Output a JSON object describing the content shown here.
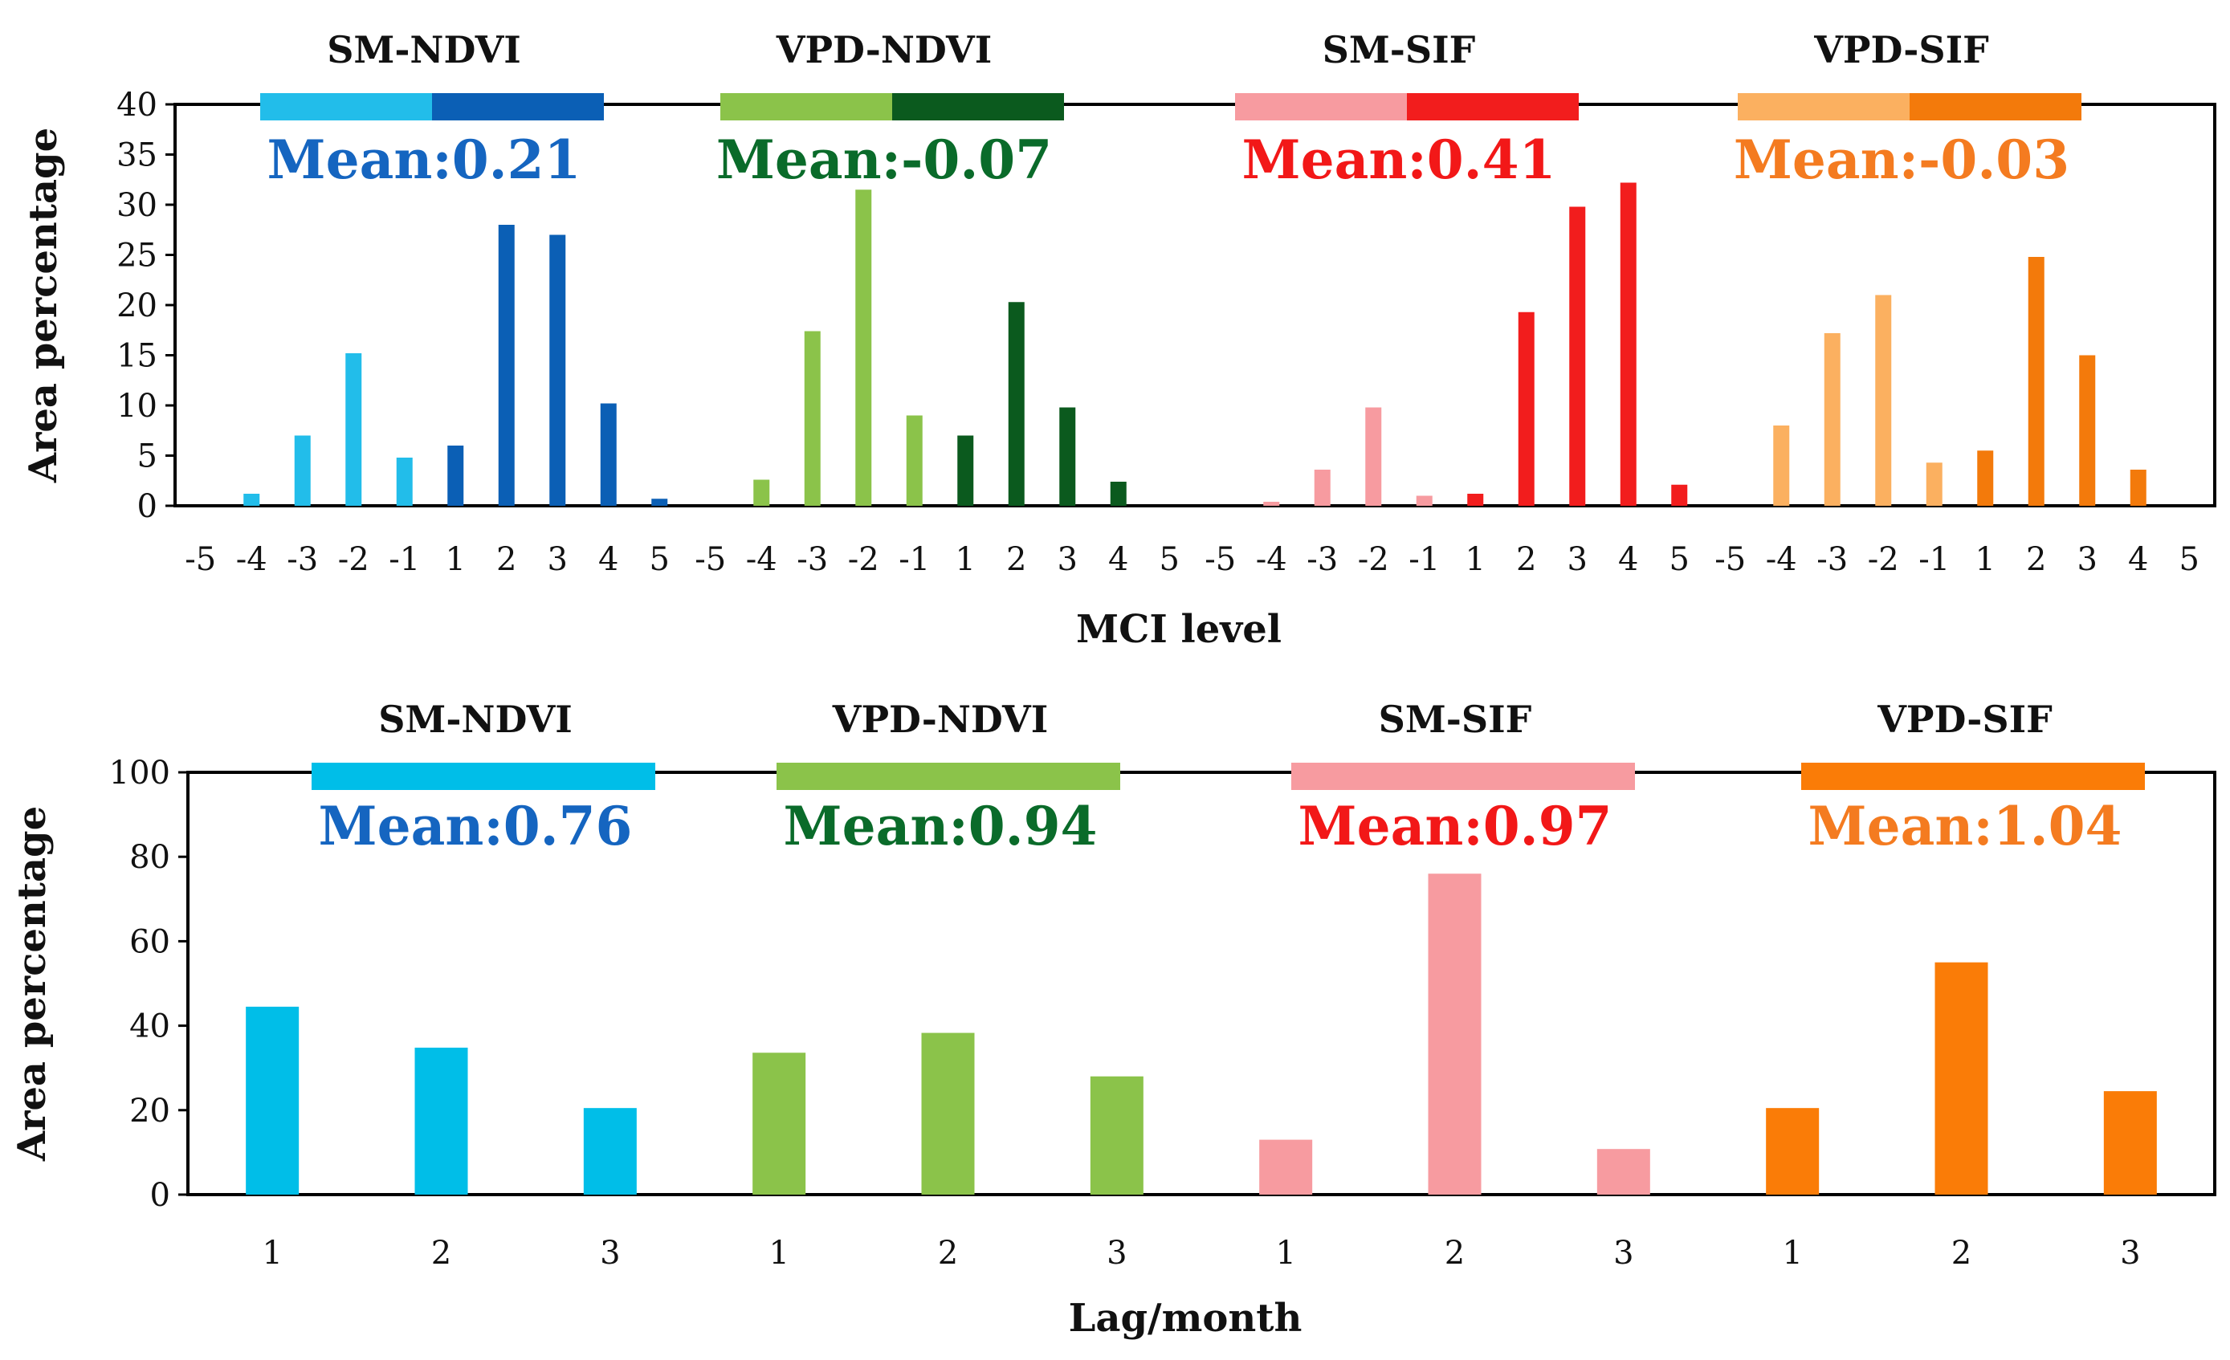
{
  "chart_data": [
    {
      "type": "bar",
      "panel": "top",
      "xlabel": "MCI level",
      "ylabel": "Area percentage",
      "ylim": [
        0,
        40
      ],
      "yticks": [
        "0",
        "5",
        "10",
        "15",
        "20",
        "25",
        "30",
        "35",
        "40"
      ],
      "categories": [
        "-5",
        "-4",
        "-3",
        "-2",
        "-1",
        "1",
        "2",
        "3",
        "4",
        "5"
      ],
      "groups": [
        {
          "name": "SM-NDVI",
          "mean_label": "Mean:0.21",
          "mean_color": "#1565C0",
          "neg_color": "#22BDEA",
          "pos_color": "#0B5FB5",
          "values": [
            0,
            1.2,
            7,
            15.2,
            4.8,
            6,
            28,
            27,
            10.2,
            0.7
          ]
        },
        {
          "name": "VPD-NDVI",
          "mean_label": "Mean:-0.07",
          "mean_color": "#0A6B2A",
          "neg_color": "#8BC34A",
          "pos_color": "#0B5A1E",
          "values": [
            0,
            2.6,
            17.4,
            31.5,
            9,
            7,
            20.3,
            9.8,
            2.4,
            0
          ]
        },
        {
          "name": "SM-SIF",
          "mean_label": "Mean:0.41",
          "mean_color": "#F21818",
          "neg_color": "#F79BA0",
          "pos_color": "#F21D1D",
          "values": [
            0,
            0.4,
            3.6,
            9.8,
            1,
            1.2,
            19.3,
            29.8,
            32.2,
            2.1
          ]
        },
        {
          "name": "VPD-SIF",
          "mean_label": "Mean:-0.03",
          "mean_color": "#F47B20",
          "neg_color": "#FBB060",
          "pos_color": "#F37A0B",
          "values": [
            0,
            8,
            17.2,
            21,
            4.3,
            5.5,
            24.8,
            15,
            3.6,
            0
          ]
        }
      ]
    },
    {
      "type": "bar",
      "panel": "bottom",
      "xlabel": "Lag/month",
      "ylabel": "Area percentage",
      "ylim": [
        0,
        100
      ],
      "yticks": [
        "0",
        "20",
        "40",
        "60",
        "80",
        "100"
      ],
      "categories": [
        "1",
        "2",
        "3"
      ],
      "groups": [
        {
          "name": "SM-NDVI",
          "mean_label": "Mean:0.76",
          "mean_color": "#1565C0",
          "color": "#00BEE8",
          "values": [
            44.5,
            34.8,
            20.5
          ]
        },
        {
          "name": "VPD-NDVI",
          "mean_label": "Mean:0.94",
          "mean_color": "#0A6B2A",
          "color": "#8BC34A",
          "values": [
            33.6,
            38.3,
            28
          ]
        },
        {
          "name": "SM-SIF",
          "mean_label": "Mean:0.97",
          "mean_color": "#F21818",
          "color": "#F79BA0",
          "values": [
            13,
            76,
            10.8
          ]
        },
        {
          "name": "VPD-SIF",
          "mean_label": "Mean:1.04",
          "mean_color": "#F47B20",
          "color": "#FA7C07",
          "values": [
            20.5,
            55,
            24.5
          ]
        }
      ]
    }
  ]
}
